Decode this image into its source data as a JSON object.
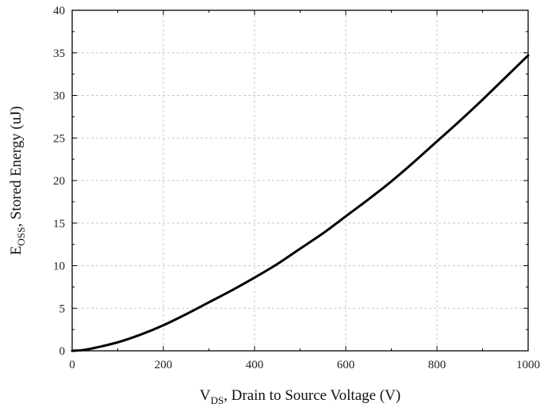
{
  "chart_data": {
    "type": "line",
    "title": "",
    "xlabel": {
      "main": "V",
      "sub": "DS",
      "rest": ", Drain to Source Voltage (V)"
    },
    "ylabel": {
      "main": "E",
      "sub": "OSS",
      "rest": ", Stored Energy (uJ)"
    },
    "xlim": [
      0,
      1000
    ],
    "ylim": [
      0,
      40
    ],
    "xticks": [
      0,
      200,
      400,
      600,
      800,
      1000
    ],
    "yticks": [
      0,
      5,
      10,
      15,
      20,
      25,
      30,
      35,
      40
    ],
    "grid": true,
    "legend": "none",
    "series": [
      {
        "color": "#000000",
        "x": [
          0,
          25,
          50,
          100,
          150,
          200,
          250,
          300,
          350,
          400,
          450,
          500,
          550,
          600,
          650,
          700,
          750,
          800,
          850,
          900,
          950,
          1000
        ],
        "y": [
          0,
          0.1,
          0.35,
          1.0,
          1.9,
          3.0,
          4.3,
          5.7,
          7.1,
          8.6,
          10.2,
          12.0,
          13.8,
          15.8,
          17.8,
          19.9,
          22.2,
          24.6,
          27.0,
          29.5,
          32.1,
          34.7
        ]
      }
    ]
  }
}
